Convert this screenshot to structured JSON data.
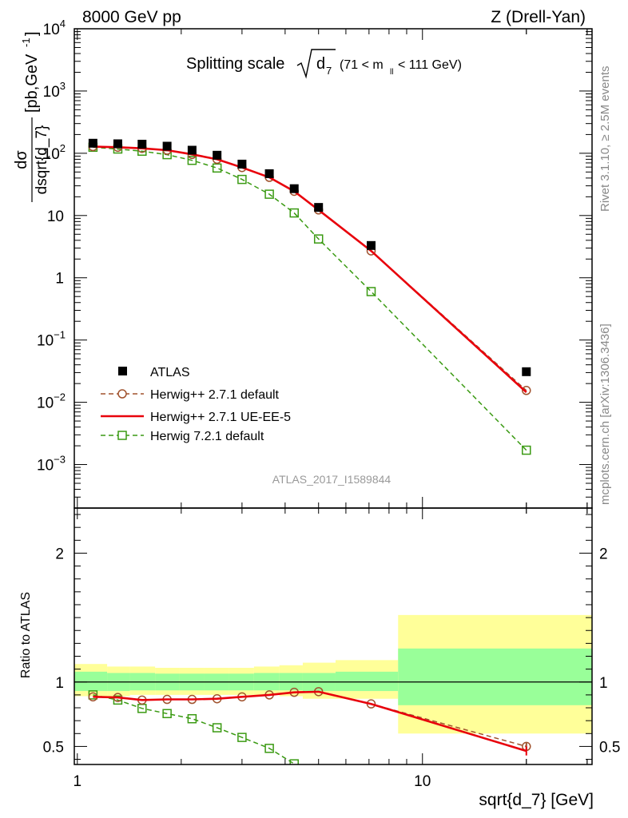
{
  "header": {
    "left": "8000 GeV pp",
    "right": "Z (Drell-Yan)"
  },
  "main_title": {
    "prefix": "Splitting scale",
    "var": "d",
    "var_sub": "7",
    "cut_open": "(71 < m",
    "cut_sub": "ll",
    "cut_close": " < 111 GeV)"
  },
  "ylabel_top": {
    "num": "dσ",
    "den": "dsqrt{d_7}",
    "unit_open": "[pb,GeV",
    "unit_exp": "-1",
    "unit_close": "]"
  },
  "ylabel_bottom": "Ratio to ATLAS",
  "xlabel": "sqrt{d_7} [GeV]",
  "watermark": "ATLAS_2017_I1589844",
  "side_top": "Rivet 3.1.10, ≥ 2.5M events",
  "side_bottom": "mcplots.cern.ch [arXiv:1306.3436]",
  "top_ticks": [
    {
      "v": 10000,
      "base": "10",
      "exp": "4"
    },
    {
      "v": 1000,
      "base": "10",
      "exp": "3"
    },
    {
      "v": 100,
      "base": "10",
      "exp": "2"
    },
    {
      "v": 10,
      "base": "10",
      "exp": ""
    },
    {
      "v": 1,
      "base": "1",
      "exp": ""
    },
    {
      "v": 0.1,
      "base": "10",
      "exp": "−1"
    },
    {
      "v": 0.01,
      "base": "10",
      "exp": "−2"
    },
    {
      "v": 0.001,
      "base": "10",
      "exp": "−3"
    }
  ],
  "ratio_ticks": [
    {
      "v": 0.5,
      "label": "0.5"
    },
    {
      "v": 1,
      "label": "1"
    },
    {
      "v": 2,
      "label": "2"
    }
  ],
  "x_ticks": [
    {
      "v": 1,
      "label": "1"
    },
    {
      "v": 10,
      "label": "10"
    }
  ],
  "legend": [
    {
      "key": "atlas",
      "label": "ATLAS"
    },
    {
      "key": "h271",
      "label": "Herwig++ 2.7.1 default"
    },
    {
      "key": "ueee5",
      "label": "Herwig++ 2.7.1 UE-EE-5"
    },
    {
      "key": "h721",
      "label": "Herwig 7.2.1 default"
    }
  ],
  "colors": {
    "atlas": "#000000",
    "h271": "#a0522d",
    "ueee5": "#e8000b",
    "h721": "#3a9a12",
    "band_outer": "#ffff99",
    "band_inner": "#99ff99"
  },
  "chart_data": {
    "type": "scatter",
    "x_scale": "log",
    "xlim": [
      0.98,
      31
    ],
    "main": {
      "y_scale": "log",
      "ylim": [
        0.0002,
        10000
      ],
      "x": [
        1.11,
        1.31,
        1.54,
        1.82,
        2.15,
        2.54,
        3.0,
        3.6,
        4.25,
        5.0,
        7.1,
        20.0
      ],
      "series": [
        {
          "name": "ATLAS",
          "key": "atlas",
          "values": [
            145,
            142,
            140,
            130,
            112,
            93,
            67,
            47,
            27,
            13.5,
            3.3,
            0.031
          ]
        },
        {
          "name": "Herwig++ 2.7.1 default",
          "key": "h271",
          "values": [
            128,
            125,
            120,
            112,
            96,
            80,
            59,
            41,
            24.5,
            12.3,
            2.7,
            0.0155
          ]
        },
        {
          "name": "Herwig++ 2.7.1 UE-EE-5",
          "key": "ueee5",
          "values": [
            128,
            125,
            120,
            112,
            96,
            80,
            59,
            41,
            24.5,
            12.3,
            2.7,
            0.0145
          ]
        },
        {
          "name": "Herwig 7.2.1 default",
          "key": "h721",
          "values": [
            125,
            117,
            108,
            95,
            77,
            58,
            38,
            22,
            11,
            4.2,
            0.6,
            0.0017
          ]
        }
      ]
    },
    "ratio": {
      "ylim": [
        0.36,
        2.35
      ],
      "bin_edges": [
        0.98,
        1.22,
        1.42,
        1.68,
        1.98,
        2.33,
        2.75,
        3.25,
        3.85,
        4.5,
        5.6,
        8.5,
        31
      ],
      "band_inner": [
        [
          0.93,
          1.08
        ],
        [
          0.93,
          1.07
        ],
        [
          0.935,
          1.07
        ],
        [
          0.935,
          1.065
        ],
        [
          0.935,
          1.065
        ],
        [
          0.935,
          1.065
        ],
        [
          0.935,
          1.065
        ],
        [
          0.935,
          1.07
        ],
        [
          0.935,
          1.07
        ],
        [
          0.93,
          1.07
        ],
        [
          0.93,
          1.08
        ],
        [
          0.82,
          1.26
        ]
      ],
      "band_outer": [
        [
          0.89,
          1.14
        ],
        [
          0.89,
          1.12
        ],
        [
          0.9,
          1.12
        ],
        [
          0.9,
          1.11
        ],
        [
          0.9,
          1.11
        ],
        [
          0.9,
          1.11
        ],
        [
          0.9,
          1.11
        ],
        [
          0.9,
          1.12
        ],
        [
          0.89,
          1.13
        ],
        [
          0.87,
          1.15
        ],
        [
          0.87,
          1.17
        ],
        [
          0.6,
          1.52
        ]
      ],
      "x": [
        1.11,
        1.31,
        1.54,
        1.82,
        2.15,
        2.54,
        3.0,
        3.6,
        4.25,
        5.0,
        7.1,
        20.0
      ],
      "series": [
        {
          "name": "Herwig++ 2.7.1 default",
          "key": "h271",
          "values": [
            0.885,
            0.88,
            0.86,
            0.865,
            0.865,
            0.87,
            0.885,
            0.9,
            0.92,
            0.925,
            0.83,
            0.5
          ],
          "errors": [
            0,
            0,
            0,
            0,
            0,
            0,
            0,
            0,
            0,
            0,
            0,
            0.03
          ]
        },
        {
          "name": "Herwig++ 2.7.1 UE-EE-5",
          "key": "ueee5",
          "values": [
            0.885,
            0.88,
            0.86,
            0.865,
            0.865,
            0.87,
            0.885,
            0.9,
            0.92,
            0.925,
            0.83,
            0.465
          ],
          "errors": [
            0,
            0,
            0,
            0,
            0,
            0,
            0,
            0,
            0,
            0,
            0,
            0.035
          ]
        },
        {
          "name": "Herwig 7.2.1 default",
          "key": "h721",
          "values": [
            0.9,
            0.86,
            0.795,
            0.755,
            0.715,
            0.645,
            0.57,
            0.485,
            0.365,
            null,
            null,
            null
          ]
        }
      ]
    }
  }
}
